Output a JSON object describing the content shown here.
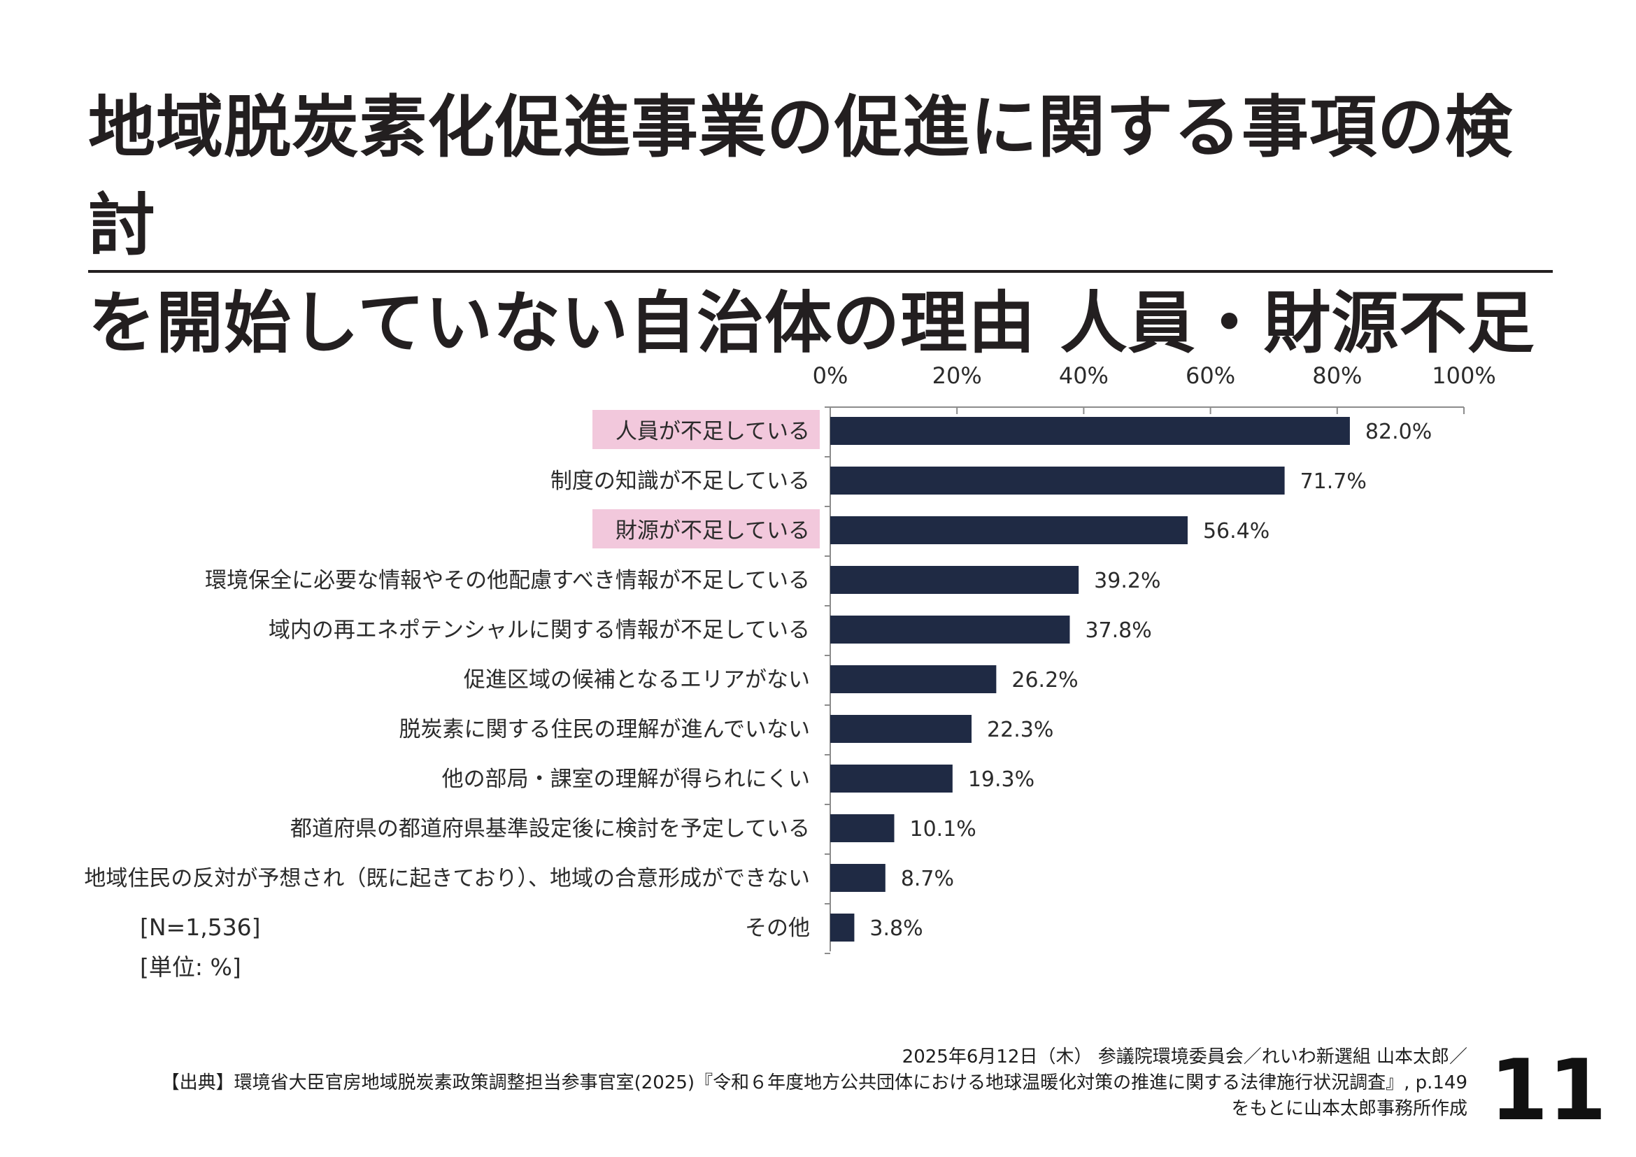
{
  "slide": {
    "title_line1": "地域脱炭素化促進事業の促進に関する事項の検討",
    "title_line2": "を開始していない自治体の理由 人員・財源不足",
    "note_n": "[N=1,536]",
    "note_unit": "[単位: %]",
    "footer_line1": "2025年6月12日（木） 参議院環境委員会／れいわ新選組 山本太郎／",
    "footer_line2": "【出典】環境省大臣官房地域脱炭素政策調整担当参事官室(2025)『令和６年度地方公共団体における地球温暖化対策の推進に関する法律施行状況調査』, p.149",
    "footer_line3": "をもとに山本太郎事務所作成",
    "page_number": "11"
  },
  "colors": {
    "bar": "#1f2a44",
    "highlight": "#f2c8dc",
    "axis": "#8c8c8c",
    "text": "#2b2b2b"
  },
  "chart_data": {
    "type": "bar",
    "orientation": "horizontal",
    "categories": [
      "人員が不足している",
      "制度の知識が不足している",
      "財源が不足している",
      "環境保全に必要な情報やその他配慮すべき情報が不足している",
      "域内の再エネポテンシャルに関する情報が不足している",
      "促進区域の候補となるエリアがない",
      "脱炭素に関する住民の理解が進んでいない",
      "他の部局・課室の理解が得られにくい",
      "都道府県の都道府県基準設定後に検討を予定している",
      "地域住民の反対が予想され（既に起きており）、地域の合意形成ができない",
      "その他"
    ],
    "values": [
      82.0,
      71.7,
      56.4,
      39.2,
      37.8,
      26.2,
      22.3,
      19.3,
      10.1,
      8.7,
      3.8
    ],
    "value_labels": [
      "82.0%",
      "71.7%",
      "56.4%",
      "39.2%",
      "37.8%",
      "26.2%",
      "22.3%",
      "19.3%",
      "10.1%",
      "8.7%",
      "3.8%"
    ],
    "highlighted": [
      true,
      false,
      true,
      false,
      false,
      false,
      false,
      false,
      false,
      false,
      false
    ],
    "xlim": [
      0,
      100
    ],
    "ticks": [
      0,
      20,
      40,
      60,
      80,
      100
    ],
    "tick_labels": [
      "0%",
      "20%",
      "40%",
      "60%",
      "80%",
      "100%"
    ],
    "axis_position": "top",
    "grid": false,
    "legend": "none"
  }
}
